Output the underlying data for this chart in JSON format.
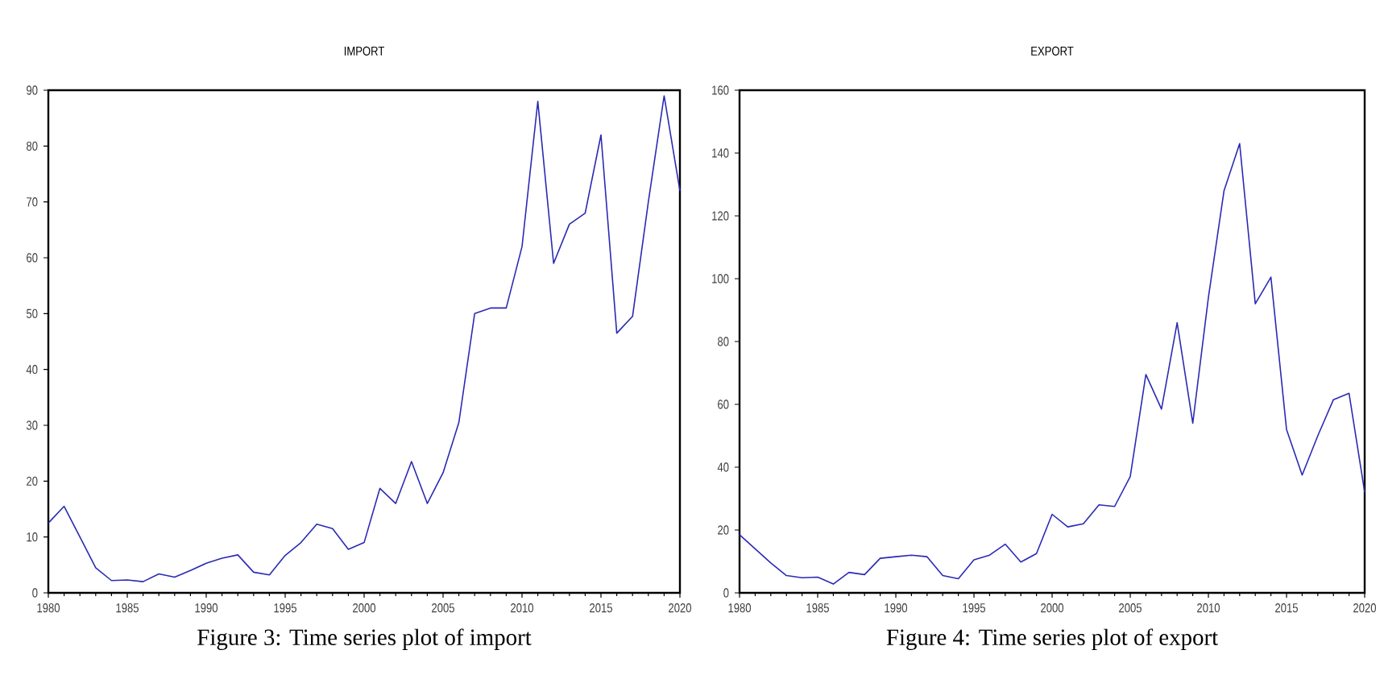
{
  "chart_data": [
    {
      "type": "line",
      "title": "IMPORT",
      "x": [
        1980,
        1981,
        1982,
        1983,
        1984,
        1985,
        1986,
        1987,
        1988,
        1989,
        1990,
        1991,
        1992,
        1993,
        1994,
        1995,
        1996,
        1997,
        1998,
        1999,
        2000,
        2001,
        2002,
        2003,
        2004,
        2005,
        2006,
        2007,
        2008,
        2009,
        2010,
        2011,
        2012,
        2013,
        2014,
        2015,
        2016,
        2017,
        2018,
        2019,
        2020
      ],
      "series": [
        {
          "color": "#2a2ab4",
          "values": [
            12.5,
            15.5,
            10,
            4.5,
            2.2,
            2.3,
            2.0,
            3.4,
            2.8,
            4,
            5.3,
            6.2,
            6.8,
            3.7,
            3.2,
            6.7,
            9,
            12.3,
            11.5,
            7.8,
            9,
            18.7,
            16,
            23.5,
            16,
            21.5,
            30.5,
            50,
            51,
            51,
            62,
            88,
            59,
            66,
            68,
            82,
            46.5,
            49.5,
            70,
            89,
            72
          ]
        }
      ],
      "xlim": [
        1980,
        2020
      ],
      "xticks": [
        1980,
        1985,
        1990,
        1995,
        2000,
        2005,
        2010,
        2015,
        2020
      ],
      "ylim": [
        0,
        90
      ],
      "yticks": [
        0,
        10,
        20,
        30,
        40,
        50,
        60,
        70,
        80,
        90
      ],
      "marker": "none",
      "line_style": "solid",
      "annotations": [
        "Figure 3: Time series plot of import"
      ]
    },
    {
      "type": "line",
      "title": "EXPORT",
      "x": [
        1980,
        1981,
        1982,
        1983,
        1984,
        1985,
        1986,
        1987,
        1988,
        1989,
        1990,
        1991,
        1992,
        1993,
        1994,
        1995,
        1996,
        1997,
        1998,
        1999,
        2000,
        2001,
        2002,
        2003,
        2004,
        2005,
        2006,
        2007,
        2008,
        2009,
        2010,
        2011,
        2012,
        2013,
        2014,
        2015,
        2016,
        2017,
        2018,
        2019,
        2020
      ],
      "series": [
        {
          "color": "#2a2ab4",
          "values": [
            18.5,
            14,
            9.5,
            5.5,
            4.8,
            5,
            2.8,
            6.5,
            5.8,
            11,
            11.5,
            12,
            11.5,
            5.5,
            4.5,
            10.5,
            12,
            15.5,
            9.8,
            12.5,
            25,
            21,
            22,
            28,
            27.5,
            37,
            69.5,
            58.5,
            86,
            54,
            94,
            128,
            143,
            92,
            100.5,
            52,
            37.5,
            50,
            61.5,
            63.5,
            32
          ]
        }
      ],
      "xlim": [
        1980,
        2020
      ],
      "xticks": [
        1980,
        1985,
        1990,
        1995,
        2000,
        2005,
        2010,
        2015,
        2020
      ],
      "ylim": [
        0,
        160
      ],
      "yticks": [
        0,
        20,
        40,
        60,
        80,
        100,
        120,
        140,
        160
      ],
      "marker": "none",
      "line_style": "solid",
      "annotations": [
        "Figure 4: Time series plot of export"
      ]
    }
  ]
}
